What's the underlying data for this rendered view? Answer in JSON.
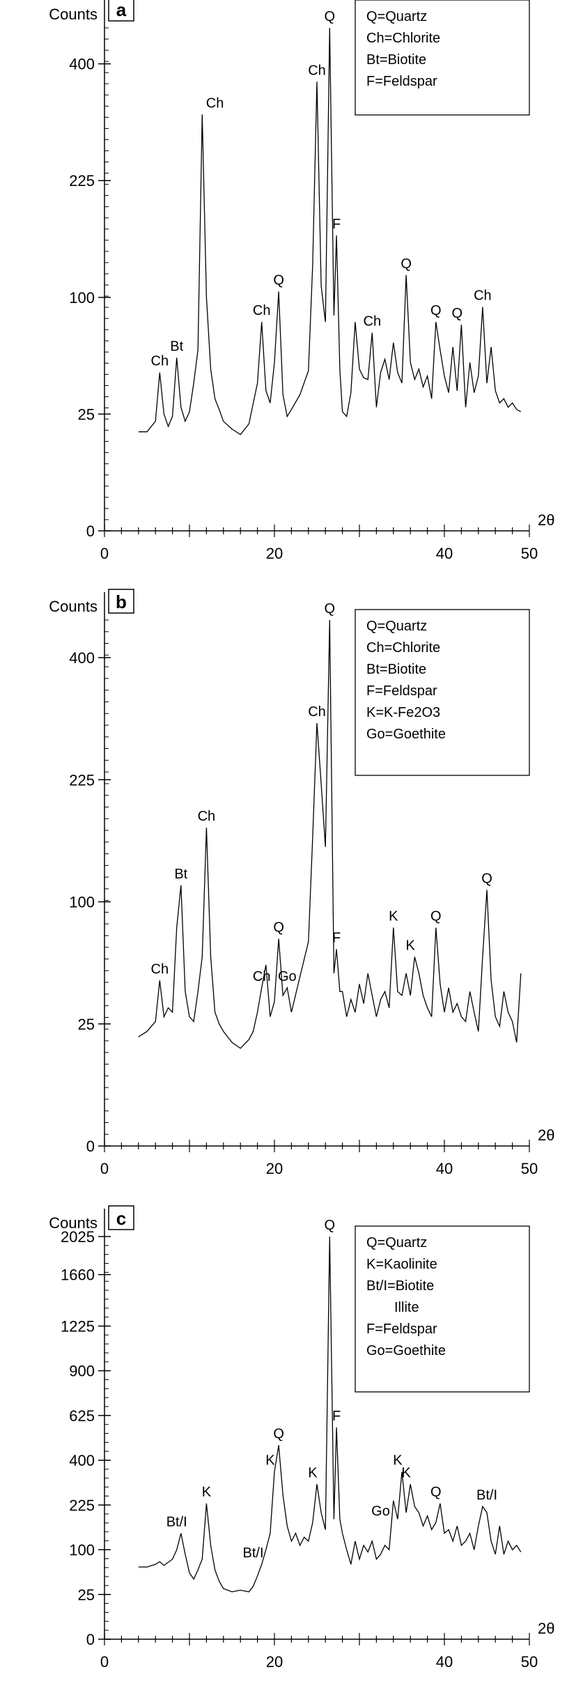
{
  "chart_data": [
    {
      "type": "line",
      "panel_label": "a",
      "ylabel": "Counts",
      "xlabel": "2θ",
      "x_ticks": [
        0,
        20,
        40,
        50
      ],
      "xlim": [
        0,
        50
      ],
      "y_scale": "sqrt",
      "y_ticks": [
        0,
        25,
        100,
        225,
        400
      ],
      "ylim": [
        0,
        464
      ],
      "legend_position": "top-right",
      "legend": [
        "Q=Quartz",
        "Ch=Chlorite",
        "Bt=Biotite",
        "F=Feldspar"
      ],
      "series": [
        {
          "x": [
            4,
            5,
            6,
            6.5,
            7,
            7.5,
            8,
            8.5,
            9,
            9.5,
            10,
            10.5,
            11,
            11.5,
            12,
            12.5,
            13,
            13.5,
            14,
            15,
            16,
            17,
            18,
            18.5,
            19,
            19.5,
            20,
            20.5,
            21,
            21.5,
            22,
            23,
            24,
            24.5,
            25,
            25.5,
            26,
            26.5,
            27,
            27.3,
            27.7,
            28,
            28.5,
            29,
            29.5,
            30,
            30.5,
            31,
            31.5,
            32,
            32.5,
            33,
            33.5,
            34,
            34.5,
            35,
            35.5,
            36,
            36.5,
            37,
            37.5,
            38,
            38.5,
            39,
            39.5,
            40,
            40.5,
            41,
            41.5,
            42,
            42.5,
            43,
            43.5,
            44,
            44.5,
            45,
            45.5,
            46,
            46.5,
            47,
            47.5,
            48,
            48.5,
            49
          ],
          "y": [
            18,
            18,
            22,
            46,
            25,
            20,
            24,
            55,
            28,
            22,
            26,
            40,
            60,
            318,
            100,
            48,
            32,
            27,
            22,
            19,
            17,
            21,
            40,
            80,
            36,
            30,
            52,
            105,
            34,
            24,
            27,
            34,
            47,
            130,
            370,
            110,
            80,
            464,
            85,
            160,
            48,
            26,
            24,
            35,
            80,
            48,
            43,
            42,
            72,
            28,
            46,
            54,
            42,
            65,
            46,
            40,
            120,
            52,
            42,
            48,
            38,
            44,
            32,
            80,
            60,
            44,
            35,
            62,
            36,
            78,
            28,
            52,
            35,
            44,
            92,
            40,
            62,
            36,
            30,
            32,
            28,
            30,
            27,
            26
          ]
        }
      ],
      "annotations": [
        {
          "text": "Ch",
          "x": 6.5,
          "y": 46
        },
        {
          "text": "Bt",
          "x": 8.5,
          "y": 55
        },
        {
          "text": "Ch",
          "x": 13,
          "y": 318
        },
        {
          "text": "Ch",
          "x": 18.5,
          "y": 80
        },
        {
          "text": "Q",
          "x": 20.5,
          "y": 105
        },
        {
          "text": "Ch",
          "x": 25,
          "y": 370
        },
        {
          "text": "Q",
          "x": 26.5,
          "y": 464
        },
        {
          "text": "F",
          "x": 27.3,
          "y": 160
        },
        {
          "text": "Ch",
          "x": 31.5,
          "y": 72
        },
        {
          "text": "Q",
          "x": 35.5,
          "y": 120
        },
        {
          "text": "Q",
          "x": 39,
          "y": 80
        },
        {
          "text": "Q",
          "x": 41.5,
          "y": 78
        },
        {
          "text": "Ch",
          "x": 44.5,
          "y": 92
        }
      ]
    },
    {
      "type": "line",
      "panel_label": "b",
      "ylabel": "Counts",
      "xlabel": "2θ",
      "x_ticks": [
        0,
        20,
        40,
        50
      ],
      "xlim": [
        0,
        50
      ],
      "y_scale": "sqrt",
      "y_ticks": [
        0,
        25,
        100,
        225,
        400
      ],
      "ylim": [
        0,
        464
      ],
      "legend_position": "top-right",
      "legend": [
        "Q=Quartz",
        "Ch=Chlorite",
        "Bt=Biotite",
        "F=Feldspar",
        "K=K-Fe2O3",
        "Go=Goethite"
      ],
      "series": [
        {
          "x": [
            4,
            5,
            6,
            6.5,
            7,
            7.5,
            8,
            8.5,
            9,
            9.5,
            10,
            10.5,
            11,
            11.5,
            12,
            12.5,
            13,
            13.5,
            14,
            15,
            16,
            17,
            17.5,
            18,
            18.5,
            19,
            19.5,
            20,
            20.5,
            21,
            21.5,
            22,
            23,
            24,
            24.5,
            25,
            25.5,
            26,
            26.5,
            27,
            27.3,
            27.7,
            28,
            28.5,
            29,
            29.5,
            30,
            30.5,
            31,
            31.5,
            32,
            32.5,
            33,
            33.5,
            34,
            34.5,
            35,
            35.5,
            36,
            36.5,
            37,
            37.5,
            38,
            38.5,
            39,
            39.5,
            40,
            40.5,
            41,
            41.5,
            42,
            42.5,
            43,
            43.5,
            44,
            44.5,
            45,
            45.5,
            46,
            46.5,
            47,
            47.5,
            48,
            48.5,
            49
          ],
          "y": [
            20,
            22,
            26,
            46,
            28,
            32,
            30,
            80,
            114,
            40,
            28,
            26,
            40,
            60,
            170,
            60,
            30,
            25,
            22,
            18,
            16,
            19,
            22,
            30,
            42,
            55,
            28,
            35,
            72,
            38,
            42,
            30,
            48,
            70,
            160,
            300,
            220,
            150,
            464,
            50,
            65,
            40,
            40,
            28,
            36,
            30,
            44,
            34,
            50,
            38,
            28,
            36,
            40,
            32,
            80,
            40,
            38,
            50,
            38,
            60,
            50,
            38,
            32,
            28,
            80,
            44,
            30,
            42,
            30,
            34,
            28,
            26,
            40,
            30,
            22,
            60,
            110,
            46,
            28,
            24,
            40,
            30,
            26,
            18,
            50
          ]
        }
      ],
      "annotations": [
        {
          "text": "Ch",
          "x": 6.5,
          "y": 46
        },
        {
          "text": "Bt",
          "x": 9,
          "y": 114
        },
        {
          "text": "Ch",
          "x": 12,
          "y": 170
        },
        {
          "text": "Ch",
          "x": 18.5,
          "y": 42
        },
        {
          "text": "Q",
          "x": 20.5,
          "y": 72
        },
        {
          "text": "Go",
          "x": 21.5,
          "y": 42
        },
        {
          "text": "Ch",
          "x": 25,
          "y": 300
        },
        {
          "text": "Q",
          "x": 26.5,
          "y": 464
        },
        {
          "text": "F",
          "x": 27.3,
          "y": 65
        },
        {
          "text": "K",
          "x": 34,
          "y": 80
        },
        {
          "text": "K",
          "x": 36,
          "y": 60
        },
        {
          "text": "Q",
          "x": 39,
          "y": 80
        },
        {
          "text": "Q",
          "x": 45,
          "y": 110
        }
      ]
    },
    {
      "type": "line",
      "panel_label": "c",
      "ylabel": "Counts",
      "xlabel": "2θ",
      "x_ticks": [
        0,
        20,
        40,
        50
      ],
      "xlim": [
        0,
        50
      ],
      "y_scale": "sqrt",
      "y_ticks": [
        0,
        25,
        100,
        225,
        400,
        625,
        900,
        1225,
        1660,
        2025
      ],
      "ylim": [
        0,
        2025
      ],
      "legend_position": "top-right",
      "legend": [
        "Q=Quartz",
        "K=Kaolinite",
        "Bt/I=Biotite",
        "Illite",
        "F=Feldspar",
        "Go=Goethite"
      ],
      "series": [
        {
          "x": [
            4,
            5,
            6,
            6.5,
            7,
            8,
            8.5,
            9,
            9.5,
            10,
            10.5,
            11,
            11.5,
            12,
            12.5,
            13,
            13.5,
            14,
            15,
            16,
            17,
            17.5,
            18,
            18.5,
            19,
            19.5,
            20,
            20.5,
            21,
            21.5,
            22,
            22.5,
            23,
            23.5,
            24,
            24.5,
            25,
            25.5,
            26,
            26.5,
            27,
            27.3,
            27.7,
            28,
            28.5,
            29,
            29.5,
            30,
            30.5,
            31,
            31.5,
            32,
            32.5,
            33,
            33.5,
            34,
            34.5,
            35,
            35.5,
            36,
            36.5,
            37,
            37.5,
            38,
            38.5,
            39,
            39.5,
            40,
            40.5,
            41,
            41.5,
            42,
            42.5,
            43,
            43.5,
            44,
            44.5,
            45,
            45.5,
            46,
            46.5,
            47,
            47.5,
            48,
            48.5,
            49
          ],
          "y": [
            65,
            65,
            70,
            75,
            68,
            80,
            100,
            140,
            90,
            55,
            45,
            60,
            80,
            230,
            110,
            60,
            42,
            32,
            28,
            30,
            28,
            35,
            50,
            70,
            100,
            140,
            350,
            470,
            260,
            160,
            120,
            140,
            110,
            130,
            120,
            170,
            300,
            200,
            150,
            2025,
            180,
            560,
            180,
            140,
            100,
            70,
            120,
            80,
            110,
            95,
            120,
            80,
            90,
            110,
            100,
            240,
            180,
            350,
            200,
            300,
            220,
            200,
            160,
            190,
            150,
            170,
            230,
            140,
            150,
            120,
            160,
            110,
            120,
            140,
            100,
            160,
            220,
            200,
            120,
            90,
            160,
            90,
            120,
            100,
            110,
            95
          ]
        }
      ],
      "annotations": [
        {
          "text": "Bt/I",
          "x": 8.5,
          "y": 140
        },
        {
          "text": "K",
          "x": 12,
          "y": 230
        },
        {
          "text": "Bt/I",
          "x": 17.5,
          "y": 70
        },
        {
          "text": "K",
          "x": 19.5,
          "y": 350
        },
        {
          "text": "Q",
          "x": 20.5,
          "y": 470
        },
        {
          "text": "K",
          "x": 24.5,
          "y": 300
        },
        {
          "text": "Q",
          "x": 26.5,
          "y": 2025
        },
        {
          "text": "F",
          "x": 27.3,
          "y": 560
        },
        {
          "text": "Go",
          "x": 32.5,
          "y": 170
        },
        {
          "text": "K",
          "x": 34.5,
          "y": 350
        },
        {
          "text": "K",
          "x": 35.5,
          "y": 300
        },
        {
          "text": "Q",
          "x": 39,
          "y": 230
        },
        {
          "text": "Bt/I",
          "x": 45,
          "y": 220
        }
      ]
    }
  ]
}
